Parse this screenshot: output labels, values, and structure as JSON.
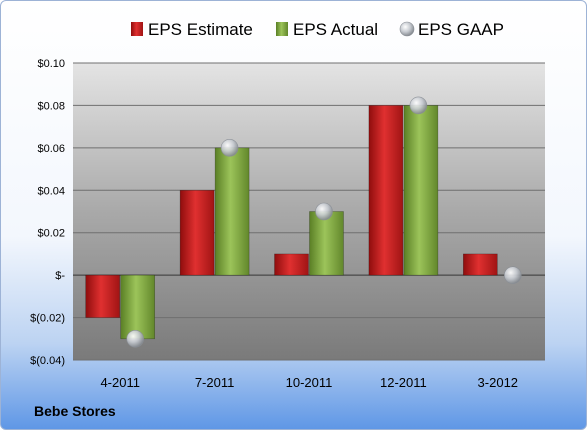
{
  "company": "Bebe Stores",
  "colors": {
    "estimate": "#cc1f1f",
    "actual": "#7fac3c",
    "gaap": "#c4c8ce"
  },
  "chart_data": {
    "type": "bar",
    "categories": [
      "4-2011",
      "7-2011",
      "10-2011",
      "12-2011",
      "3-2012"
    ],
    "series": [
      {
        "name": "EPS Estimate",
        "values": [
          -0.02,
          0.04,
          0.01,
          0.08,
          0.01
        ]
      },
      {
        "name": "EPS Actual",
        "values": [
          -0.03,
          0.06,
          0.03,
          0.08,
          null
        ]
      },
      {
        "name": "EPS GAAP",
        "type": "scatter",
        "values": [
          -0.03,
          0.06,
          0.03,
          0.08,
          0.0
        ]
      }
    ],
    "y_ticks": [
      0.1,
      0.08,
      0.06,
      0.04,
      0.02,
      0,
      -0.02,
      -0.04
    ],
    "y_tick_labels": [
      "$0.10",
      "$0.08",
      "$0.06",
      "$0.04",
      "$0.02",
      "$-",
      "$(0.02)",
      "$(0.04)"
    ],
    "ylim": [
      -0.04,
      0.1
    ],
    "grid": true,
    "legend_position": "top"
  }
}
